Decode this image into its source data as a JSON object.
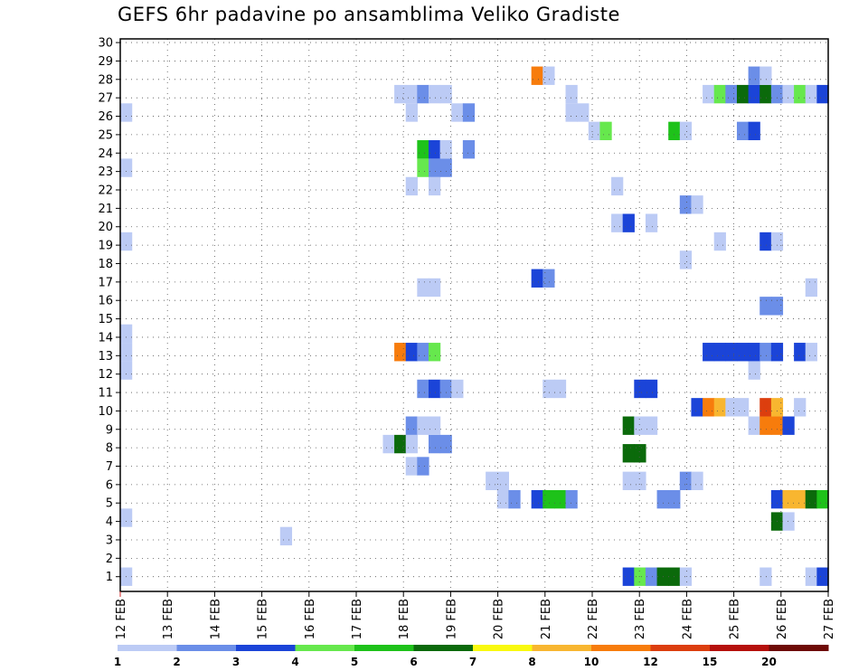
{
  "chart_data": {
    "type": "heatmap",
    "title": "GEFS 6hr padavine po ansamblima Veliko Gradiste",
    "xlabel": "",
    "ylabel": "",
    "x_tick_labels": [
      "12 FEB",
      "13 FEB",
      "14 FEB",
      "15 FEB",
      "16 FEB",
      "17 FEB",
      "18 FEB",
      "19 FEB",
      "20 FEB",
      "21 FEB",
      "22 FEB",
      "23 FEB",
      "24 FEB",
      "25 FEB",
      "26 FEB",
      "27 FEB"
    ],
    "y_tick_labels": [
      "1",
      "2",
      "3",
      "4",
      "5",
      "6",
      "7",
      "8",
      "9",
      "10",
      "11",
      "12",
      "13",
      "14",
      "15",
      "16",
      "17",
      "18",
      "19",
      "20",
      "21",
      "22",
      "23",
      "24",
      "25",
      "26",
      "27",
      "28",
      "29",
      "30"
    ],
    "x_range": [
      0,
      60
    ],
    "y_range": [
      0,
      30
    ],
    "x_step_hours": 6,
    "grid": true,
    "colorbar": {
      "labels": [
        "1",
        "2",
        "3",
        "4",
        "5",
        "6",
        "7",
        "8",
        "10",
        "12",
        "15",
        "20"
      ],
      "colors": [
        "#bccbf5",
        "#6b8ee8",
        "#1b44d8",
        "#66e84d",
        "#1ec21a",
        "#0b6a0b",
        "#f9f90f",
        "#f8b630",
        "#f77c0c",
        "#dc3e0e",
        "#b5100c",
        "#6e0a06"
      ]
    },
    "cells": [
      [
        0,
        0.8,
        1.5
      ],
      [
        0,
        4,
        1.5
      ],
      [
        0,
        12,
        1.5
      ],
      [
        0,
        13,
        1.5
      ],
      [
        0,
        14,
        1.5
      ],
      [
        0,
        19,
        1.5
      ],
      [
        0,
        23,
        1.5
      ],
      [
        0,
        26,
        1.5
      ],
      [
        14,
        3,
        1.5
      ],
      [
        23,
        8,
        1.5
      ],
      [
        24,
        8,
        6.5
      ],
      [
        24,
        13,
        11
      ],
      [
        24,
        27,
        1.5
      ],
      [
        25,
        6.8,
        1.5
      ],
      [
        25,
        8,
        1.5
      ],
      [
        25,
        9,
        2.5
      ],
      [
        25,
        13,
        3.5
      ],
      [
        25,
        22,
        1.5
      ],
      [
        25,
        26,
        1.5
      ],
      [
        25,
        27,
        1.5
      ],
      [
        26,
        6.8,
        2.5
      ],
      [
        26,
        9,
        1.5
      ],
      [
        26,
        11,
        2.5
      ],
      [
        26,
        13,
        2.5
      ],
      [
        26,
        16.5,
        1.5
      ],
      [
        26,
        23,
        4.5
      ],
      [
        26,
        24,
        5.5
      ],
      [
        26,
        27,
        2.5
      ],
      [
        27,
        8,
        2.5
      ],
      [
        27,
        9,
        1.5
      ],
      [
        27,
        11,
        3.5
      ],
      [
        27,
        13,
        4.5
      ],
      [
        27,
        16.5,
        1.5
      ],
      [
        27,
        22,
        1.5
      ],
      [
        27,
        23,
        2.5
      ],
      [
        27,
        24,
        3.5
      ],
      [
        27,
        27,
        1.5
      ],
      [
        28,
        8,
        2.5
      ],
      [
        28,
        11,
        2.5
      ],
      [
        28,
        23,
        2.5
      ],
      [
        28,
        24,
        1.5
      ],
      [
        28,
        27,
        1.5
      ],
      [
        29,
        11,
        1.5
      ],
      [
        29,
        26,
        1.5
      ],
      [
        30,
        24,
        2.5
      ],
      [
        30,
        26,
        2.5
      ],
      [
        32,
        6,
        1.5
      ],
      [
        33,
        5,
        1.5
      ],
      [
        33,
        6,
        1.5
      ],
      [
        34,
        5,
        2.5
      ],
      [
        36,
        5,
        3.5
      ],
      [
        36,
        17,
        3.5
      ],
      [
        36,
        28,
        11
      ],
      [
        37,
        5,
        5.5
      ],
      [
        37,
        11,
        1.5
      ],
      [
        37,
        17,
        2.5
      ],
      [
        37,
        28,
        1.5
      ],
      [
        38,
        5,
        5.5
      ],
      [
        38,
        11,
        1.5
      ],
      [
        39,
        5,
        2.5
      ],
      [
        39,
        26,
        1.5
      ],
      [
        39,
        27,
        1.5
      ],
      [
        40,
        26,
        1.5
      ],
      [
        41,
        25,
        1.5
      ],
      [
        42,
        25,
        4.5
      ],
      [
        43,
        20,
        1.5
      ],
      [
        43,
        22,
        1.5
      ],
      [
        44,
        0.8,
        3.5
      ],
      [
        44,
        6,
        1.5
      ],
      [
        44,
        7.5,
        6.5
      ],
      [
        44,
        9,
        6.5
      ],
      [
        44,
        20,
        3.5
      ],
      [
        45,
        0.8,
        4.5
      ],
      [
        45,
        6,
        1.5
      ],
      [
        45,
        7.5,
        6.5
      ],
      [
        45,
        9,
        1.5
      ],
      [
        45,
        11,
        3.5
      ],
      [
        46,
        0.8,
        2.5
      ],
      [
        46,
        9,
        1.5
      ],
      [
        46,
        11,
        3.5
      ],
      [
        46,
        20,
        1.5
      ],
      [
        47,
        0.8,
        6.5
      ],
      [
        47,
        5,
        2.5
      ],
      [
        48,
        0.8,
        6.5
      ],
      [
        48,
        5,
        2.5
      ],
      [
        48,
        25,
        5.5
      ],
      [
        49,
        0.8,
        1.5
      ],
      [
        49,
        6,
        2.5
      ],
      [
        49,
        18,
        1.5
      ],
      [
        49,
        21,
        2.5
      ],
      [
        49,
        25,
        1.5
      ],
      [
        50,
        6,
        1.5
      ],
      [
        50,
        10,
        3.5
      ],
      [
        50,
        21,
        1.5
      ],
      [
        51,
        10,
        11
      ],
      [
        51,
        13,
        3.5
      ],
      [
        51,
        27,
        1.5
      ],
      [
        52,
        10,
        9
      ],
      [
        52,
        13,
        3.5
      ],
      [
        52,
        19,
        1.5
      ],
      [
        52,
        27,
        4.5
      ],
      [
        53,
        10,
        1.5
      ],
      [
        53,
        13,
        3.5
      ],
      [
        53,
        27,
        2.5
      ],
      [
        54,
        10,
        1.5
      ],
      [
        54,
        13,
        3.5
      ],
      [
        54,
        25,
        2.5
      ],
      [
        54,
        27,
        6.5
      ],
      [
        55,
        9,
        1.5
      ],
      [
        55,
        12,
        1.5
      ],
      [
        55,
        13,
        3.5
      ],
      [
        55,
        25,
        3.5
      ],
      [
        55,
        27,
        3.5
      ],
      [
        55,
        28,
        2.5
      ],
      [
        56,
        0.8,
        1.5
      ],
      [
        56,
        9,
        11
      ],
      [
        56,
        10,
        13
      ],
      [
        56,
        13,
        2.5
      ],
      [
        56,
        15.5,
        2.5
      ],
      [
        56,
        19,
        3.5
      ],
      [
        56,
        27,
        6.5
      ],
      [
        56,
        28,
        1.5
      ],
      [
        57,
        3.8,
        6.5
      ],
      [
        57,
        5,
        3.5
      ],
      [
        57,
        9,
        11
      ],
      [
        57,
        10,
        8.5
      ],
      [
        57,
        13,
        3.5
      ],
      [
        57,
        15.5,
        2.5
      ],
      [
        57,
        19,
        1.5
      ],
      [
        57,
        27,
        2.5
      ],
      [
        58,
        3.8,
        1.5
      ],
      [
        58,
        5,
        8
      ],
      [
        58,
        9,
        3.5
      ],
      [
        58,
        27,
        1.5
      ],
      [
        59,
        5,
        8
      ],
      [
        59,
        10,
        1.5
      ],
      [
        59,
        13,
        3.5
      ],
      [
        59,
        27,
        4.5
      ],
      [
        60,
        0.8,
        1.5
      ],
      [
        60,
        5,
        6.5
      ],
      [
        60,
        13,
        1.5
      ],
      [
        60,
        16.5,
        1.5
      ],
      [
        60,
        27,
        1.5
      ],
      [
        61,
        0.8,
        3.5
      ],
      [
        61,
        5,
        5.5
      ],
      [
        61,
        27,
        3.5
      ]
    ]
  }
}
